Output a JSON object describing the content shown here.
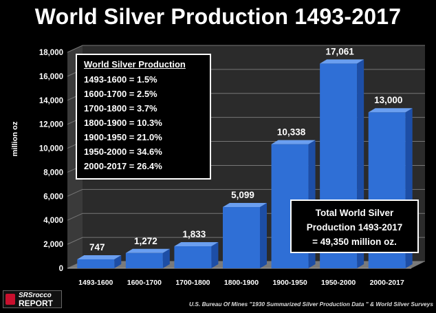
{
  "title": "World Silver Production 1493-2017",
  "info_box": {
    "header": "World Silver Production",
    "rows": [
      "1493-1600 = 1.5%",
      "1600-1700 = 2.5%",
      "1700-1800 = 3.7%",
      "1800-1900 = 10.3%",
      "1900-1950 = 21.0%",
      "1950-2000 = 34.6%",
      "2000-2017 = 26.4%"
    ]
  },
  "total_box": {
    "line1": "Total World Silver",
    "line2": "Production 1493-2017",
    "line3": "= 49,350 million oz."
  },
  "logo": {
    "line1": "SRSrocco",
    "line2": "REPORT"
  },
  "source": "U.S. Bureau Of Mines \"1930 Summarized Silver Production Data \" & World Silver Surveys",
  "colors": {
    "bar": "#2f6fd6",
    "bar_top": "#6b9ff0",
    "bar_side": "#1d4ea6",
    "floor": "#7a7a7a",
    "wall": "#2b2b2b",
    "grid": "#777777"
  },
  "chart_data": {
    "type": "bar",
    "categories": [
      "1493-1600",
      "1600-1700",
      "1700-1800",
      "1800-1900",
      "1900-1950",
      "1950-2000",
      "2000-2017"
    ],
    "values": [
      747,
      1272,
      1833,
      5099,
      10338,
      17061,
      13000
    ],
    "value_labels": [
      "747",
      "1,272",
      "1,833",
      "5,099",
      "10,338",
      "17,061",
      "13,000"
    ],
    "title": "World Silver Production 1493-2017",
    "xlabel": "",
    "ylabel": "million oz",
    "ylim": [
      0,
      18000
    ],
    "yticks": [
      0,
      2000,
      4000,
      6000,
      8000,
      10000,
      12000,
      14000,
      16000,
      18000
    ],
    "ytick_labels": [
      "0",
      "2,000",
      "4,000",
      "6,000",
      "8,000",
      "10,000",
      "12,000",
      "14,000",
      "16,000",
      "18,000"
    ],
    "grid": true,
    "three_d": true
  }
}
